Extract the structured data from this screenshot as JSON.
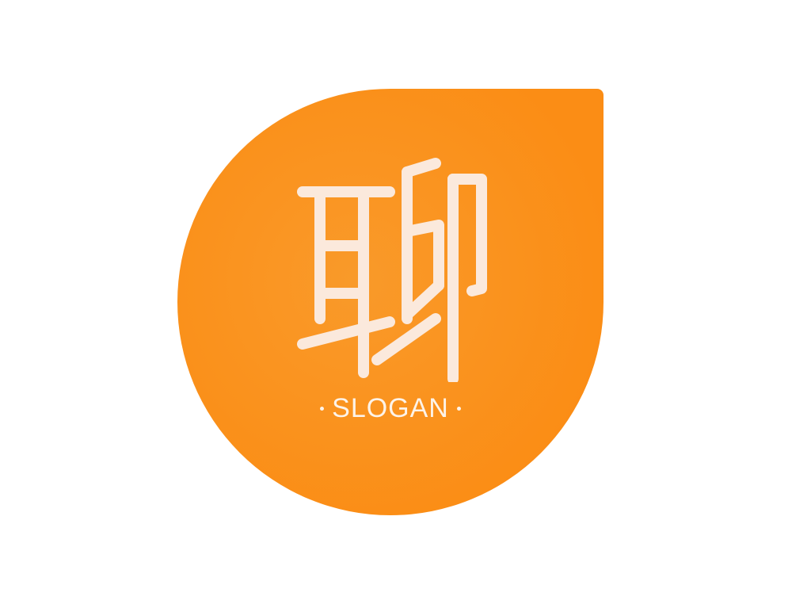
{
  "logo": {
    "glyph": "聊",
    "slogan": "SLOGAN",
    "colors": {
      "badge": "#fb8d15",
      "badge_light": "#f99a2a",
      "glyph": "#fbe9dc",
      "slogan": "#fdf3e8",
      "background": "#ffffff"
    }
  }
}
